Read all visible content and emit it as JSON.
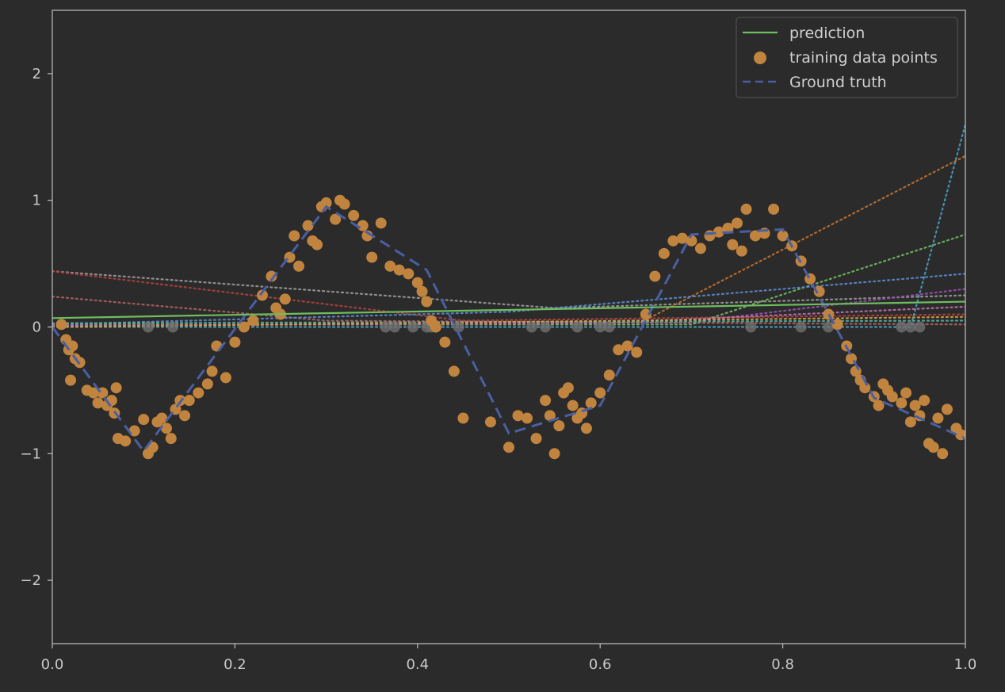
{
  "chart_data": {
    "type": "line",
    "title": "",
    "xlabel": "",
    "ylabel": "",
    "xlim": [
      0.0,
      1.0
    ],
    "ylim": [
      -2.5,
      2.5
    ],
    "grid": false,
    "legend_placement": "top-right",
    "x_ticks": [
      "0.0",
      "0.2",
      "0.4",
      "0.6",
      "0.8",
      "1.0"
    ],
    "y_ticks": [
      "−2",
      "−1",
      "0",
      "1",
      "2"
    ],
    "legend": [
      {
        "label": "prediction",
        "kind": "line",
        "color": "#6ebd5e"
      },
      {
        "label": "training data points",
        "kind": "marker",
        "color": "#c0843f"
      },
      {
        "label": "Ground truth",
        "kind": "dashed",
        "color": "#4a5fa3"
      }
    ],
    "series": [
      {
        "name": "prediction",
        "style": "solid",
        "color": "#6ebd5e",
        "x": [
          0.0,
          1.0
        ],
        "y": [
          0.07,
          0.2
        ]
      },
      {
        "name": "Ground truth",
        "style": "dashed",
        "color": "#4a5fa3",
        "x": [
          0.0,
          0.1,
          0.3,
          0.41,
          0.5,
          0.6,
          0.7,
          0.8,
          0.9,
          1.0
        ],
        "y": [
          0.0,
          -0.98,
          0.95,
          0.45,
          -0.84,
          -0.62,
          0.73,
          0.77,
          -0.56,
          -0.88
        ]
      },
      {
        "name": "training data points",
        "style": "scatter",
        "color": "#c0843f",
        "x": [
          0.01,
          0.015,
          0.018,
          0.02,
          0.022,
          0.025,
          0.03,
          0.038,
          0.045,
          0.05,
          0.055,
          0.06,
          0.065,
          0.068,
          0.07,
          0.072,
          0.08,
          0.09,
          0.1,
          0.105,
          0.11,
          0.115,
          0.12,
          0.125,
          0.13,
          0.135,
          0.14,
          0.145,
          0.15,
          0.16,
          0.17,
          0.175,
          0.18,
          0.19,
          0.2,
          0.21,
          0.22,
          0.23,
          0.24,
          0.245,
          0.25,
          0.255,
          0.26,
          0.265,
          0.27,
          0.28,
          0.285,
          0.29,
          0.295,
          0.3,
          0.31,
          0.315,
          0.32,
          0.33,
          0.34,
          0.345,
          0.35,
          0.36,
          0.37,
          0.38,
          0.39,
          0.4,
          0.405,
          0.41,
          0.415,
          0.42,
          0.43,
          0.44,
          0.45,
          0.48,
          0.5,
          0.51,
          0.52,
          0.53,
          0.54,
          0.545,
          0.55,
          0.555,
          0.56,
          0.565,
          0.57,
          0.575,
          0.58,
          0.585,
          0.59,
          0.6,
          0.61,
          0.62,
          0.63,
          0.64,
          0.65,
          0.66,
          0.67,
          0.68,
          0.69,
          0.7,
          0.71,
          0.72,
          0.73,
          0.74,
          0.745,
          0.75,
          0.755,
          0.76,
          0.77,
          0.78,
          0.79,
          0.8,
          0.81,
          0.82,
          0.83,
          0.84,
          0.85,
          0.86,
          0.87,
          0.875,
          0.88,
          0.885,
          0.89,
          0.9,
          0.905,
          0.91,
          0.915,
          0.92,
          0.93,
          0.935,
          0.94,
          0.945,
          0.95,
          0.955,
          0.96,
          0.965,
          0.97,
          0.975,
          0.98,
          0.99,
          0.995
        ],
        "y": [
          0.02,
          -0.1,
          -0.18,
          -0.42,
          -0.15,
          -0.25,
          -0.28,
          -0.5,
          -0.52,
          -0.6,
          -0.52,
          -0.62,
          -0.58,
          -0.68,
          -0.48,
          -0.88,
          -0.9,
          -0.82,
          -0.73,
          -1.0,
          -0.95,
          -0.75,
          -0.72,
          -0.8,
          -0.88,
          -0.65,
          -0.58,
          -0.7,
          -0.58,
          -0.52,
          -0.45,
          -0.35,
          -0.15,
          -0.4,
          -0.12,
          0.0,
          0.05,
          0.25,
          0.4,
          0.15,
          0.1,
          0.22,
          0.55,
          0.72,
          0.48,
          0.8,
          0.68,
          0.65,
          0.95,
          0.98,
          0.85,
          1.0,
          0.97,
          0.88,
          0.8,
          0.72,
          0.55,
          0.82,
          0.48,
          0.45,
          0.42,
          0.35,
          0.28,
          0.2,
          0.05,
          0.0,
          -0.12,
          -0.35,
          -0.72,
          -0.75,
          -0.95,
          -0.7,
          -0.72,
          -0.88,
          -0.58,
          -0.7,
          -1.0,
          -0.78,
          -0.52,
          -0.48,
          -0.62,
          -0.72,
          -0.68,
          -0.8,
          -0.6,
          -0.52,
          -0.38,
          -0.18,
          -0.15,
          -0.2,
          0.1,
          0.4,
          0.58,
          0.68,
          0.7,
          0.68,
          0.62,
          0.72,
          0.75,
          0.78,
          0.65,
          0.82,
          0.6,
          0.93,
          0.72,
          0.74,
          0.93,
          0.72,
          0.64,
          0.52,
          0.38,
          0.28,
          0.1,
          0.02,
          -0.15,
          -0.25,
          -0.35,
          -0.42,
          -0.48,
          -0.55,
          -0.62,
          -0.45,
          -0.5,
          -0.55,
          -0.6,
          -0.52,
          -0.75,
          -0.62,
          -0.7,
          -0.58,
          -0.92,
          -0.95,
          -0.72,
          -1.0,
          -0.65,
          -0.8,
          -0.85
        ]
      },
      {
        "name": "",
        "style": "dotted",
        "color": "#9a9a9a",
        "x": [
          0.0,
          0.55,
          1.0
        ],
        "y": [
          0.44,
          0.15,
          0.25
        ]
      },
      {
        "name": "",
        "style": "dotted",
        "color": "#b04040",
        "x": [
          0.0,
          0.45,
          1.0
        ],
        "y": [
          0.44,
          0.05,
          0.1
        ]
      },
      {
        "name": "",
        "style": "dotted",
        "color": "#b06060",
        "x": [
          0.0,
          0.3,
          1.0
        ],
        "y": [
          0.24,
          0.05,
          0.02
        ]
      },
      {
        "name": "",
        "style": "dotted",
        "color": "#c07030",
        "x": [
          0.0,
          0.64,
          1.0
        ],
        "y": [
          0.02,
          0.02,
          1.35
        ]
      },
      {
        "name": "",
        "style": "dotted",
        "color": "#6ebd5e",
        "x": [
          0.0,
          0.7,
          1.0
        ],
        "y": [
          0.02,
          0.02,
          0.73
        ]
      },
      {
        "name": "",
        "style": "dotted",
        "color": "#4aa0c0",
        "x": [
          0.0,
          0.94,
          1.0
        ],
        "y": [
          0.0,
          0.0,
          1.6
        ]
      },
      {
        "name": "",
        "style": "dotted",
        "color": "#5a8ad0",
        "x": [
          0.0,
          0.5,
          1.0
        ],
        "y": [
          0.02,
          0.12,
          0.42
        ]
      },
      {
        "name": "",
        "style": "dotted",
        "color": "#9a50b0",
        "x": [
          0.0,
          0.7,
          1.0
        ],
        "y": [
          0.01,
          0.04,
          0.3
        ]
      },
      {
        "name": "",
        "style": "dotted",
        "color": "#c070b0",
        "x": [
          0.0,
          0.6,
          1.0
        ],
        "y": [
          0.01,
          0.03,
          0.16
        ]
      },
      {
        "name": "",
        "style": "dotted",
        "color": "#50b0a0",
        "x": [
          0.0,
          1.0
        ],
        "y": [
          0.03,
          0.05
        ]
      },
      {
        "name": "",
        "style": "dotted",
        "color": "#d0a040",
        "x": [
          0.0,
          1.0
        ],
        "y": [
          0.0,
          0.08
        ]
      }
    ],
    "zero_markers": {
      "color": "#707070",
      "x": [
        0.105,
        0.132,
        0.365,
        0.375,
        0.395,
        0.41,
        0.42,
        0.415,
        0.445,
        0.525,
        0.54,
        0.575,
        0.6,
        0.61,
        0.765,
        0.82,
        0.85,
        0.93,
        0.94,
        0.95
      ],
      "y": [
        0,
        0,
        0,
        0,
        0,
        0,
        0,
        0,
        0,
        0,
        0,
        0,
        0,
        0,
        0,
        0,
        0,
        0,
        0,
        0
      ]
    }
  }
}
